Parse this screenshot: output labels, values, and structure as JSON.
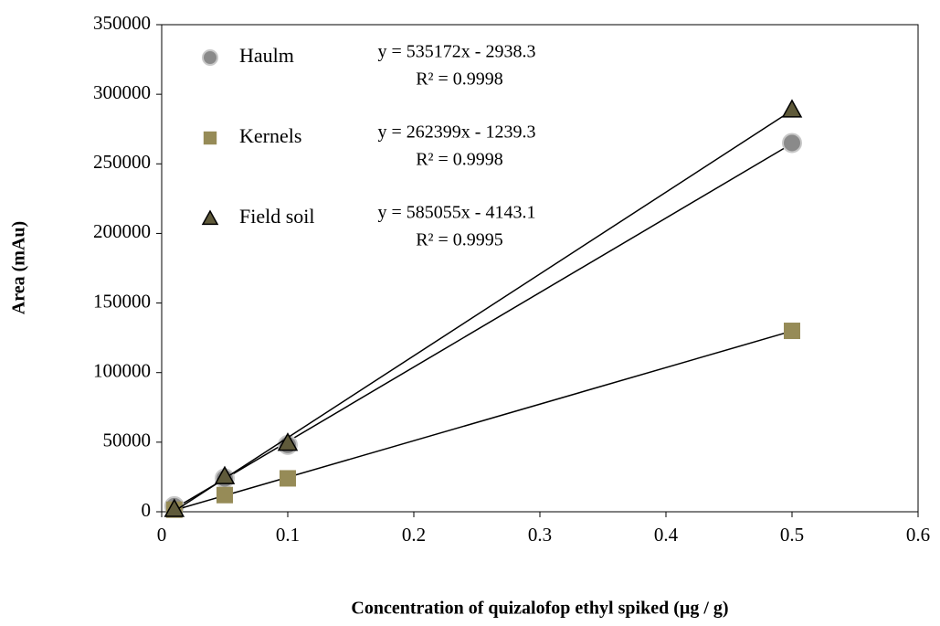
{
  "chart_data": {
    "type": "scatter",
    "x_label": "Concentration of quizalofop ethyl spiked (µg / g)",
    "y_label": "Area (mAu)",
    "xlim": [
      0,
      0.6
    ],
    "xticks": [
      0,
      0.1,
      0.2,
      0.3,
      0.4,
      0.5,
      0.6
    ],
    "ylim": [
      0,
      350000
    ],
    "yticks": [
      0,
      50000,
      100000,
      150000,
      200000,
      250000,
      300000,
      350000
    ],
    "legend": "upper left",
    "trendlines": true,
    "x": [
      0.01,
      0.05,
      0.1,
      0.5
    ],
    "series": [
      {
        "name": "Haulm",
        "marker": "circle",
        "color": "#8a8a8a",
        "values": [
          4000,
          24000,
          48000,
          265000
        ],
        "equation": "y = 535172x - 2938.3",
        "r_squared": "R² = 0.9998"
      },
      {
        "name": "Kernels",
        "marker": "square",
        "color": "#968b57",
        "values": [
          1500,
          12000,
          24000,
          130000
        ],
        "equation": "y = 262399x - 1239.3",
        "r_squared": "R² = 0.9998"
      },
      {
        "name": "Field soil",
        "marker": "triangle",
        "color": "#5f5a3a",
        "values": [
          2000,
          25500,
          49500,
          289000
        ],
        "equation": "y = 585055x - 4143.1",
        "r_squared": "R² = 0.9995"
      }
    ]
  }
}
